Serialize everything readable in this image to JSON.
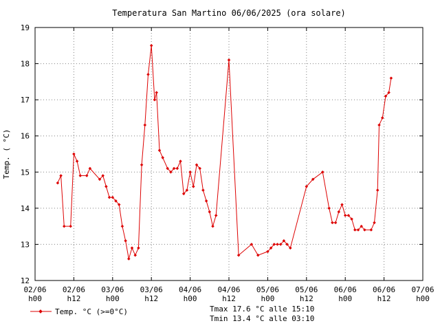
{
  "chart_data": {
    "type": "line",
    "title": "Temperatura San Martino 06/06/2025 (ora solare)",
    "ylabel": "Temp. ( °C)",
    "xlabel": "",
    "ylim": [
      12,
      19
    ],
    "yticks": [
      12,
      13,
      14,
      15,
      16,
      17,
      18,
      19
    ],
    "xlim": [
      0,
      120
    ],
    "xticks": [
      {
        "x": 0,
        "date": "02/06",
        "hour": "h00"
      },
      {
        "x": 12,
        "date": "02/06",
        "hour": "h12"
      },
      {
        "x": 24,
        "date": "03/06",
        "hour": "h00"
      },
      {
        "x": 36,
        "date": "03/06",
        "hour": "h12"
      },
      {
        "x": 48,
        "date": "04/06",
        "hour": "h00"
      },
      {
        "x": 60,
        "date": "04/06",
        "hour": "h12"
      },
      {
        "x": 72,
        "date": "05/06",
        "hour": "h00"
      },
      {
        "x": 84,
        "date": "05/06",
        "hour": "h12"
      },
      {
        "x": 96,
        "date": "06/06",
        "hour": "h00"
      },
      {
        "x": 108,
        "date": "06/06",
        "hour": "h12"
      },
      {
        "x": 120,
        "date": "07/06",
        "hour": "h00"
      }
    ],
    "grid": true,
    "legend_position": "bottom-left",
    "series": [
      {
        "name": "Temp. °C (>=0°C)",
        "color": "#dd0000",
        "marker": "diamond",
        "points": [
          [
            7.0,
            14.7
          ],
          [
            8.0,
            14.9
          ],
          [
            9.0,
            13.5
          ],
          [
            11.0,
            13.5
          ],
          [
            12.0,
            15.5
          ],
          [
            13.0,
            15.3
          ],
          [
            14.0,
            14.9
          ],
          [
            16.0,
            14.9
          ],
          [
            17.0,
            15.1
          ],
          [
            20.0,
            14.8
          ],
          [
            21.0,
            14.9
          ],
          [
            22.0,
            14.6
          ],
          [
            23.0,
            14.3
          ],
          [
            24.0,
            14.3
          ],
          [
            25.0,
            14.2
          ],
          [
            26.0,
            14.1
          ],
          [
            27.0,
            13.5
          ],
          [
            28.0,
            13.1
          ],
          [
            29.0,
            12.6
          ],
          [
            30.0,
            12.9
          ],
          [
            31.0,
            12.7
          ],
          [
            32.0,
            12.9
          ],
          [
            33.0,
            15.2
          ],
          [
            34.0,
            16.3
          ],
          [
            35.0,
            17.7
          ],
          [
            36.0,
            18.5
          ],
          [
            37.0,
            17.0
          ],
          [
            37.6,
            17.2
          ],
          [
            38.5,
            15.6
          ],
          [
            39.5,
            15.4
          ],
          [
            41.0,
            15.1
          ],
          [
            42.0,
            15.0
          ],
          [
            43.0,
            15.1
          ],
          [
            44.0,
            15.1
          ],
          [
            45.0,
            15.3
          ],
          [
            46.0,
            14.4
          ],
          [
            47.0,
            14.5
          ],
          [
            48.0,
            15.0
          ],
          [
            49.0,
            14.6
          ],
          [
            50.0,
            15.2
          ],
          [
            51.0,
            15.1
          ],
          [
            52.0,
            14.5
          ],
          [
            53.0,
            14.2
          ],
          [
            54.0,
            13.9
          ],
          [
            55.0,
            13.5
          ],
          [
            56.0,
            13.8
          ],
          [
            60.0,
            18.1
          ],
          [
            63.0,
            12.7
          ],
          [
            67.0,
            13.0
          ],
          [
            69.0,
            12.7
          ],
          [
            72.0,
            12.8
          ],
          [
            73.0,
            12.9
          ],
          [
            74.0,
            13.0
          ],
          [
            75.0,
            13.0
          ],
          [
            76.0,
            13.0
          ],
          [
            77.0,
            13.1
          ],
          [
            78.0,
            13.0
          ],
          [
            79.0,
            12.9
          ],
          [
            84.0,
            14.6
          ],
          [
            86.0,
            14.8
          ],
          [
            89.0,
            15.0
          ],
          [
            91.0,
            14.0
          ],
          [
            92.0,
            13.6
          ],
          [
            93.0,
            13.6
          ],
          [
            94.0,
            13.9
          ],
          [
            95.0,
            14.1
          ],
          [
            96.0,
            13.8
          ],
          [
            97.0,
            13.8
          ],
          [
            98.0,
            13.7
          ],
          [
            99.0,
            13.4
          ],
          [
            100.0,
            13.4
          ],
          [
            101.0,
            13.5
          ],
          [
            102.0,
            13.4
          ],
          [
            104.0,
            13.4
          ],
          [
            105.0,
            13.6
          ],
          [
            106.0,
            14.5
          ],
          [
            106.5,
            16.3
          ],
          [
            107.5,
            16.5
          ],
          [
            108.5,
            17.1
          ],
          [
            109.5,
            17.2
          ],
          [
            110.2,
            17.6
          ]
        ]
      }
    ],
    "annotations": {
      "tmax": "Tmax 17.6 °C alle 15:10",
      "tmin": "Tmin 13.4 °C alle 03:10"
    }
  }
}
